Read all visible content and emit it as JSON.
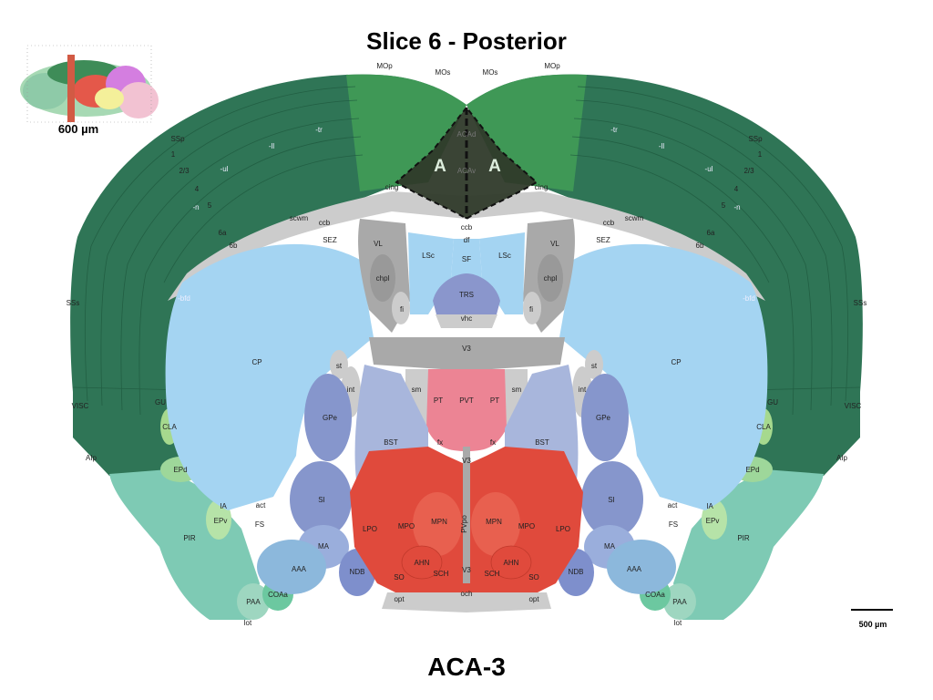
{
  "title": "Slice 6 - Posterior",
  "figure_label": "ACA-3",
  "thumbnail": {
    "label": "600 µm"
  },
  "scale_bar": {
    "label": "500 µm"
  },
  "highlight_labels": {
    "left": "A",
    "right": "A"
  },
  "faint_labels": {
    "acad": "ACAd",
    "acav": "ACAv"
  },
  "cortex_labels": {
    "mop": "MOp",
    "mos": "MOs",
    "ssp": "SSp",
    "sss": "SSs",
    "visc": "VISC",
    "gu": "GU",
    "aip": "AIp",
    "layer1": "1",
    "layer23": "2/3",
    "layer4": "4",
    "layer5": "5",
    "layer6a": "6a",
    "layer6b": "6b",
    "ll": "-ll",
    "ul": "-ul",
    "tr": "-tr",
    "n": "-n",
    "bfd": "-bfd"
  },
  "regions": {
    "cing": "cing",
    "ccb": "ccb",
    "scwm": "scwm",
    "sez": "SEZ",
    "df": "df",
    "vl": "VL",
    "lsc": "LSc",
    "sf": "SF",
    "chpl": "chpl",
    "fi": "fi",
    "trs": "TRS",
    "vhc": "vhc",
    "v3": "V3",
    "cp": "CP",
    "st": "st",
    "int": "int",
    "sm": "sm",
    "pt": "PT",
    "pvt": "PVT",
    "gpe": "GPe",
    "bst": "BST",
    "fx": "fx",
    "cla": "CLA",
    "epd": "EPd",
    "epv": "EPv",
    "ia": "IA",
    "si": "SI",
    "act": "act",
    "fs": "FS",
    "lpo": "LPO",
    "mpo": "MPO",
    "mpn": "MPN",
    "pvpo": "PVpo",
    "pir": "PIR",
    "ma": "MA",
    "aaa": "AAA",
    "ndb": "NDB",
    "ahn": "AHN",
    "sch": "SCH",
    "so": "SO",
    "coaa": "COAa",
    "paa": "PAA",
    "lot": "lot",
    "opt": "opt",
    "och": "och"
  },
  "colors": {
    "cortex_dark": "#2f7556",
    "motor": "#3f9856",
    "aca": "#2f3a2a",
    "olfactory": "#7ecab4",
    "striatum": "#a4d4f2",
    "pallidum": "#8696cc",
    "hypothalamus": "#e04a3c",
    "thalamus": "#ec8494",
    "fiber": "#cccccc",
    "ventricle": "#a9a9a9"
  }
}
